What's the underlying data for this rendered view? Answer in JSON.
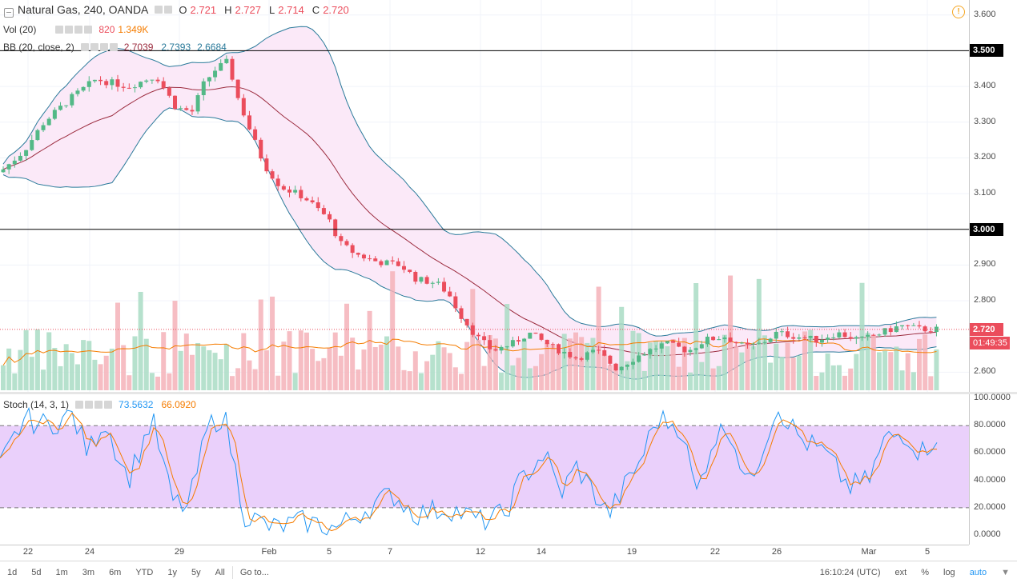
{
  "symbol": {
    "name": "Natural Gas, 240, OANDA",
    "o_label": "O",
    "o": "2.721",
    "h_label": "H",
    "h": "2.727",
    "l_label": "L",
    "l": "2.714",
    "c_label": "C",
    "c": "2.720"
  },
  "vol_legend": {
    "label": "Vol (20)",
    "value": "820",
    "ma": "1.349K"
  },
  "bb_legend": {
    "label": "BB (20, close, 2)",
    "basis": "2.7039",
    "upper": "2.7393",
    "lower": "2.6684"
  },
  "stoch_legend": {
    "label": "Stoch (14, 3, 1)",
    "k": "73.5632",
    "d": "66.0920"
  },
  "price_ticks": [
    "3.600",
    "3.400",
    "3.300",
    "3.200",
    "3.100",
    "2.900",
    "2.800",
    "2.600"
  ],
  "level_badges": [
    "3.500",
    "3.000"
  ],
  "last_price_badge": "2.720",
  "countdown_badge": "01:49:35",
  "stoch_ticks": [
    "100.0000",
    "80.0000",
    "60.0000",
    "40.0000",
    "20.0000",
    "0.0000"
  ],
  "date_ticks": [
    "22",
    "24",
    "29",
    "Feb",
    "5",
    "7",
    "12",
    "14",
    "19",
    "22",
    "26",
    "Mar",
    "5"
  ],
  "toolbar": {
    "ranges": [
      "1d",
      "5d",
      "1m",
      "3m",
      "6m",
      "YTD",
      "1y",
      "5y",
      "All"
    ],
    "goto": "Go to...",
    "clock": "16:10:24 (UTC)",
    "ext": "ext",
    "percent": "%",
    "log": "log",
    "auto": "auto"
  },
  "colors": {
    "up": "#53b987",
    "down": "#eb4d5c",
    "bb_fill": "#fbe9f8",
    "bb_band": "#2a7a9a",
    "bb_basis": "#9c2c3f",
    "stoch_k": "#2196f3",
    "stoch_d": "#f57c00",
    "stoch_band": "#e6c8fa"
  },
  "chart_data": {
    "type": "candlestick",
    "ylim": [
      2.545,
      3.642
    ],
    "horizontal_levels": [
      3.5,
      3.0
    ],
    "last_price": 2.72,
    "stoch_ylim": [
      -7,
      103
    ],
    "stoch_levels": [
      80,
      20
    ]
  }
}
